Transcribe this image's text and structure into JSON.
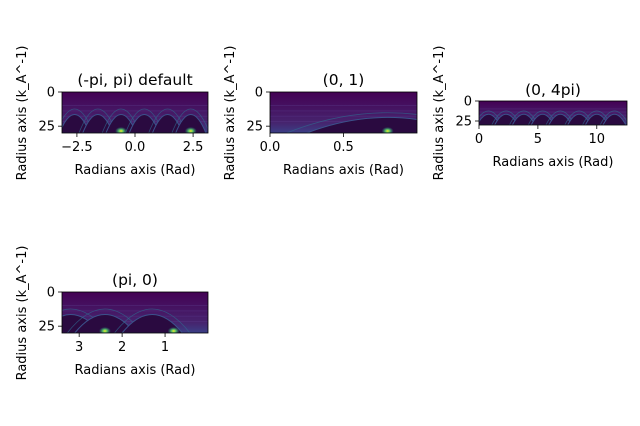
{
  "colormap": {
    "low": "#440154",
    "mid1": "#3b528b",
    "mid2": "#21918c",
    "high": "#5ec962",
    "peak": "#fde725"
  },
  "chart_data": [
    {
      "type": "heatmap",
      "title": "(-pi, pi) default",
      "xlabel": "Radians axis (Rad)",
      "ylabel": "Radius axis (k_A^-1)",
      "xlim": [
        -3.1416,
        3.1416
      ],
      "ylim": [
        30,
        0
      ],
      "xticks": [
        -2.5,
        0,
        2.5
      ],
      "xtick_labels": [
        "−2.5",
        "0.0",
        "2.5"
      ],
      "yticks": [
        0,
        25
      ],
      "ytick_labels": [
        "0",
        "25"
      ],
      "arc_centers": [
        -2.6,
        -1.6,
        -0.6,
        0.4,
        1.4,
        2.4
      ],
      "bright_spots": [
        -0.6,
        2.4
      ]
    },
    {
      "type": "heatmap",
      "title": "(0, 1)",
      "xlabel": "Radians axis (Rad)",
      "ylabel": "Radius axis (k_A^-1)",
      "xlim": [
        0,
        1
      ],
      "ylim": [
        30,
        0
      ],
      "xticks": [
        0,
        0.5
      ],
      "xtick_labels": [
        "0.0",
        "0.5"
      ],
      "yticks": [
        0,
        25
      ],
      "ytick_labels": [
        "0",
        "25"
      ],
      "arc_centers": [
        0.8
      ],
      "bright_spots": [
        0.8
      ]
    },
    {
      "type": "heatmap",
      "title": "(0, 4pi)",
      "xlabel": "Radians axis (Rad)",
      "ylabel": "Radius axis (k_A^-1)",
      "xlim": [
        0,
        12.566
      ],
      "ylim": [
        30,
        0
      ],
      "xticks": [
        0,
        5,
        10
      ],
      "xtick_labels": [
        "0",
        "5",
        "10"
      ],
      "yticks": [
        0,
        25
      ],
      "ytick_labels": [
        "0",
        "25"
      ],
      "arc_centers": [
        0.8,
        2.3,
        3.8,
        5.4,
        6.9,
        8.5,
        10.0,
        11.5
      ],
      "bright_spots": []
    },
    {
      "type": "heatmap",
      "title": "(pi, 0)",
      "xlabel": "Radians axis (Rad)",
      "ylabel": "Radius axis (k_A^-1)",
      "xlim": [
        3.4,
        0
      ],
      "ylim": [
        30,
        0
      ],
      "xticks": [
        3,
        2,
        1
      ],
      "xtick_labels": [
        "3",
        "2",
        "1"
      ],
      "yticks": [
        0,
        25
      ],
      "ytick_labels": [
        "0",
        "25"
      ],
      "arc_centers": [
        3.2,
        2.4,
        1.3
      ],
      "bright_spots": [
        2.4,
        0.8
      ]
    }
  ]
}
